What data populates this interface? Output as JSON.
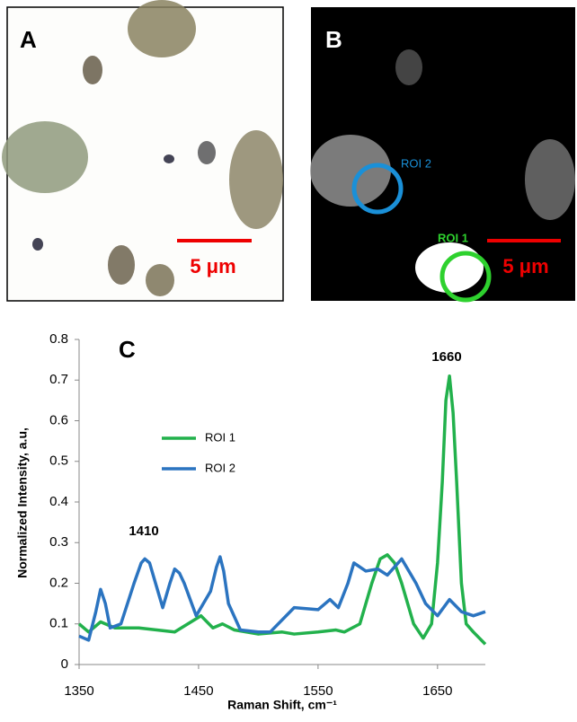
{
  "panels": {
    "a": {
      "label": "A",
      "scale_bar": "5 μm"
    },
    "b": {
      "label": "B",
      "scale_bar": "5 μm",
      "roi1": "ROI 1",
      "roi2": "ROI 2"
    }
  },
  "chart_data": {
    "type": "line",
    "panel_label": "C",
    "x_label": "Raman Shift, cm⁻¹",
    "y_label": "Normalized Intensity, a.u,",
    "annotations": [
      "1410",
      "1660"
    ],
    "xlim": [
      1350,
      1690
    ],
    "xticks": [
      1350,
      1450,
      1550,
      1650
    ],
    "ylim": [
      0,
      0.8
    ],
    "yticks": [
      0,
      0.1,
      0.2,
      0.3,
      0.4,
      0.5,
      0.6,
      0.7,
      0.8
    ],
    "series": [
      {
        "name": "ROI 1",
        "color": "#22b14c",
        "x": [
          1350,
          1358,
          1368,
          1380,
          1400,
          1430,
          1452,
          1462,
          1470,
          1480,
          1500,
          1520,
          1530,
          1550,
          1565,
          1572,
          1585,
          1595,
          1602,
          1608,
          1614,
          1620,
          1630,
          1638,
          1645,
          1650,
          1654,
          1657,
          1660,
          1663,
          1666,
          1670,
          1674,
          1680,
          1690
        ],
        "values": [
          0.1,
          0.08,
          0.105,
          0.09,
          0.09,
          0.08,
          0.12,
          0.09,
          0.1,
          0.085,
          0.075,
          0.08,
          0.075,
          0.08,
          0.085,
          0.08,
          0.1,
          0.2,
          0.26,
          0.27,
          0.25,
          0.2,
          0.1,
          0.065,
          0.1,
          0.25,
          0.45,
          0.65,
          0.71,
          0.62,
          0.45,
          0.2,
          0.1,
          0.08,
          0.05
        ]
      },
      {
        "name": "ROI 2",
        "color": "#2b74c0",
        "x": [
          1350,
          1358,
          1364,
          1368,
          1372,
          1376,
          1385,
          1396,
          1402,
          1405,
          1409,
          1414,
          1420,
          1426,
          1430,
          1434,
          1438,
          1448,
          1460,
          1465,
          1468,
          1471,
          1475,
          1485,
          1500,
          1510,
          1530,
          1550,
          1560,
          1567,
          1575,
          1580,
          1590,
          1600,
          1608,
          1620,
          1632,
          1640,
          1650,
          1660,
          1670,
          1680,
          1690
        ],
        "values": [
          0.07,
          0.06,
          0.13,
          0.185,
          0.15,
          0.09,
          0.1,
          0.2,
          0.25,
          0.26,
          0.25,
          0.2,
          0.14,
          0.2,
          0.235,
          0.225,
          0.2,
          0.12,
          0.18,
          0.24,
          0.265,
          0.23,
          0.15,
          0.085,
          0.08,
          0.08,
          0.14,
          0.135,
          0.16,
          0.14,
          0.2,
          0.25,
          0.23,
          0.235,
          0.22,
          0.26,
          0.2,
          0.15,
          0.12,
          0.16,
          0.13,
          0.12,
          0.13
        ]
      }
    ],
    "legend": "upper-left"
  }
}
